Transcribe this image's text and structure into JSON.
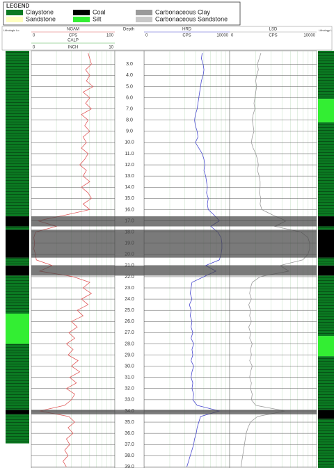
{
  "chart_data": {
    "type": "well-log",
    "legend_title": "LEGEND",
    "left_title": "Lithologic Lo",
    "right_title": "Lithology L",
    "lithologies": [
      {
        "name": "Claystone",
        "color": "#0b7a22",
        "left": [
          [
            1.8,
            16.6
          ],
          [
            17.5,
            17.8
          ],
          [
            20.3,
            21.0
          ],
          [
            21.9,
            25.3
          ],
          [
            28.0,
            33.9
          ],
          [
            34.3,
            36.9
          ]
        ],
        "right": [
          [
            1.8,
            6.1
          ],
          [
            8.2,
            16.6
          ],
          [
            17.5,
            17.8
          ],
          [
            20.3,
            21.0
          ],
          [
            21.9,
            27.3
          ],
          [
            29.1,
            33.9
          ],
          [
            34.7,
            39.1
          ]
        ]
      },
      {
        "name": "Sandstone",
        "color": "#ffffc0",
        "left": [],
        "right": []
      },
      {
        "name": "Coal",
        "color": "#000000",
        "left": [
          [
            16.6,
            17.5
          ],
          [
            17.8,
            20.3
          ],
          [
            21.0,
            21.9
          ],
          [
            33.9,
            34.3
          ]
        ],
        "right": [
          [
            16.6,
            17.5
          ],
          [
            17.8,
            20.3
          ],
          [
            21.0,
            21.9
          ],
          [
            33.9,
            34.7
          ]
        ]
      },
      {
        "name": "Silt",
        "color": "#33ee33",
        "left": [
          [
            25.3,
            28.0
          ]
        ],
        "right": [
          [
            6.1,
            8.2
          ],
          [
            27.3,
            29.1
          ]
        ]
      },
      {
        "name": "Carbonaceous Clay",
        "color": "#9a9a9a",
        "left": [],
        "right": []
      },
      {
        "name": "Carbonaceous Sandstone",
        "color": "#c8c8c8",
        "left": [],
        "right": []
      }
    ],
    "depth_label": "Depth",
    "ylim": [
      1.8,
      39.1
    ],
    "yticks": [
      {
        "value": 3,
        "label": "3.0"
      },
      {
        "value": 4,
        "label": "4.0"
      },
      {
        "value": 5,
        "label": "5.0"
      },
      {
        "value": 6,
        "label": "6.0"
      },
      {
        "value": 7,
        "label": "7.0"
      },
      {
        "value": 8,
        "label": "8.0"
      },
      {
        "value": 9,
        "label": "9.0"
      },
      {
        "value": 10,
        "label": "10.0"
      },
      {
        "value": 11,
        "label": "11.0"
      },
      {
        "value": 12,
        "label": "12.0"
      },
      {
        "value": 13,
        "label": "13.0"
      },
      {
        "value": 14,
        "label": "14.0"
      },
      {
        "value": 15,
        "label": "15.0"
      },
      {
        "value": 16,
        "label": "16.0"
      },
      {
        "value": 17,
        "label": "17.0"
      },
      {
        "value": 18,
        "label": "18.0"
      },
      {
        "value": 19,
        "label": "19.0"
      },
      {
        "value": 20,
        "label": "20.0"
      },
      {
        "value": 21,
        "label": "21.0"
      },
      {
        "value": 22,
        "label": "22.0"
      },
      {
        "value": 23,
        "label": "23.0"
      },
      {
        "value": 24,
        "label": "24.0"
      },
      {
        "value": 25,
        "label": "25.0"
      },
      {
        "value": 26,
        "label": "26.0"
      },
      {
        "value": 27,
        "label": "27.0"
      },
      {
        "value": 28,
        "label": "28.0"
      },
      {
        "value": 29,
        "label": "29.0"
      },
      {
        "value": 30,
        "label": "30.0"
      },
      {
        "value": 31,
        "label": "31.0"
      },
      {
        "value": 32,
        "label": "32.0"
      },
      {
        "value": 33,
        "label": "33.0"
      },
      {
        "value": 34,
        "label": "34.0"
      },
      {
        "value": 35,
        "label": "35.0"
      },
      {
        "value": 36,
        "label": "36.0"
      },
      {
        "value": 37,
        "label": "37.0"
      },
      {
        "value": 38,
        "label": "38.0"
      },
      {
        "value": 39,
        "label": "39.0"
      }
    ],
    "x": [
      2,
      2.5,
      3,
      3.5,
      4,
      4.5,
      5,
      5.5,
      6,
      6.5,
      7,
      7.5,
      8,
      8.5,
      9,
      9.5,
      10,
      10.5,
      11,
      11.5,
      12,
      12.5,
      13,
      13.5,
      14,
      14.5,
      15,
      15.5,
      16,
      16.5,
      17,
      17.5,
      18,
      18.5,
      19,
      19.5,
      20,
      20.5,
      21,
      21.5,
      22,
      22.5,
      23,
      23.5,
      24,
      24.5,
      25,
      25.5,
      26,
      26.5,
      27,
      27.5,
      28,
      28.5,
      29,
      29.5,
      30,
      30.5,
      31,
      31.5,
      32,
      32.5,
      33,
      33.5,
      34,
      34.5,
      35,
      35.5,
      36,
      36.5,
      37,
      37.5,
      38,
      38.5,
      39
    ],
    "tracks": [
      {
        "name": "NGAM",
        "unit": "CPS",
        "xlim": [
          0,
          100
        ],
        "xticks": [
          0,
          100
        ],
        "color": "#e05a5a",
        "values": [
          68,
          70,
          72,
          65,
          70,
          66,
          74,
          62,
          70,
          65,
          72,
          60,
          68,
          64,
          70,
          62,
          66,
          60,
          68,
          64,
          58,
          66,
          62,
          70,
          60,
          68,
          72,
          62,
          70,
          40,
          8,
          30,
          5,
          3,
          4,
          3,
          5,
          6,
          25,
          10,
          50,
          70,
          62,
          72,
          60,
          68,
          55,
          62,
          48,
          55,
          45,
          52,
          42,
          50,
          44,
          56,
          48,
          58,
          46,
          54,
          42,
          52,
          48,
          40,
          10,
          45,
          52,
          44,
          50,
          42,
          46,
          40,
          44,
          38,
          42
        ],
        "sub": {
          "name": "CALP",
          "unit": "INCH",
          "xlim": [
            0,
            10
          ],
          "xticks": [
            0,
            10
          ]
        }
      },
      {
        "name": "HRD",
        "unit": "CPS",
        "xlim": [
          0,
          10000
        ],
        "xticks": [
          0,
          10000
        ],
        "color": "#4a4ad0",
        "values": [
          6800,
          6700,
          6900,
          7000,
          6900,
          6700,
          6600,
          6500,
          6400,
          6300,
          6200,
          6000,
          5900,
          6000,
          6200,
          6300,
          6000,
          6400,
          6800,
          7000,
          7100,
          7000,
          7200,
          7300,
          7400,
          7300,
          7500,
          7400,
          7500,
          8200,
          8800,
          7800,
          8600,
          9000,
          9100,
          9100,
          9000,
          8800,
          7200,
          8400,
          7000,
          5600,
          5500,
          5400,
          5600,
          5300,
          5500,
          5400,
          5600,
          5500,
          5700,
          5500,
          5800,
          5600,
          5700,
          5500,
          5800,
          5600,
          5500,
          5700,
          5600,
          5800,
          5700,
          6200,
          8800,
          6600,
          6400,
          6200,
          6100,
          5900,
          5800,
          5600,
          5400,
          5200,
          5000
        ]
      },
      {
        "name": "LSD",
        "unit": "CPS",
        "xlim": [
          0,
          10000
        ],
        "xticks": [
          0,
          10000
        ],
        "color": "#9a9a9a",
        "values": [
          3600,
          3400,
          3200,
          3300,
          3100,
          3000,
          3100,
          3000,
          2900,
          2800,
          2900,
          2700,
          2600,
          2700,
          2800,
          2600,
          2500,
          2700,
          3000,
          3200,
          3300,
          3200,
          3400,
          3500,
          3500,
          3400,
          3600,
          3500,
          3700,
          5000,
          6500,
          5200,
          8200,
          9000,
          9200,
          9200,
          9000,
          8400,
          5800,
          6800,
          3500,
          2600,
          2400,
          2300,
          2500,
          2200,
          2400,
          2300,
          2500,
          2200,
          2400,
          2300,
          2600,
          2400,
          2500,
          2300,
          2600,
          2400,
          2300,
          2500,
          2400,
          2600,
          2500,
          3000,
          6400,
          3200,
          2400,
          2100,
          1900,
          1800,
          1700,
          1600,
          1500,
          1400,
          1300
        ]
      }
    ]
  }
}
